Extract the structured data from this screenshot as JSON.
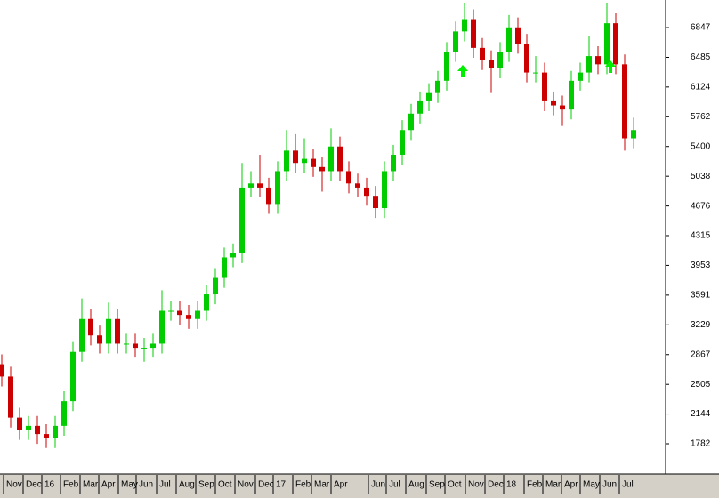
{
  "chart_data": {
    "type": "candlestick",
    "x": [
      0,
      2,
      4,
      6,
      8,
      10,
      12,
      14,
      16,
      18,
      20,
      22,
      24,
      26,
      28,
      30,
      32,
      34,
      36,
      38,
      40,
      42,
      44,
      46,
      48,
      50,
      52,
      54,
      56,
      58,
      60,
      62,
      64,
      66,
      68,
      70,
      72,
      74,
      76,
      78,
      80,
      82,
      84,
      86,
      88,
      90,
      92,
      94,
      96,
      98,
      100,
      102,
      104,
      106,
      108,
      110,
      112,
      114,
      116,
      118,
      120,
      122,
      124,
      126,
      128,
      130,
      132,
      134,
      136,
      138,
      140,
      142
    ],
    "open": [
      2750,
      2600,
      2100,
      1950,
      2000,
      1900,
      1850,
      2000,
      2300,
      2900,
      3300,
      3100,
      3000,
      3300,
      3000,
      3000,
      2950,
      2950,
      3000,
      3400,
      3400,
      3350,
      3300,
      3400,
      3600,
      3800,
      4050,
      4100,
      4900,
      4950,
      4900,
      4700,
      5100,
      5350,
      5200,
      5250,
      5150,
      5100,
      5400,
      5100,
      4950,
      4900,
      4800,
      4650,
      5100,
      5300,
      5600,
      5800,
      5950,
      6050,
      6200,
      6550,
      6800,
      6950,
      6600,
      6450,
      6350,
      6550,
      6850,
      6650,
      6300,
      6300,
      5950,
      5900,
      5850,
      6200,
      6300,
      6500,
      6400,
      6900,
      6400,
      5500
    ],
    "high": [
      2870,
      2720,
      2220,
      2120,
      2120,
      2020,
      2120,
      2420,
      3020,
      3550,
      3420,
      3220,
      3500,
      3420,
      3120,
      3120,
      3070,
      3120,
      3650,
      3520,
      3520,
      3470,
      3520,
      3720,
      3920,
      4170,
      4220,
      5200,
      5100,
      5300,
      5020,
      5220,
      5600,
      5550,
      5500,
      5370,
      5270,
      5620,
      5520,
      5220,
      5070,
      5020,
      4920,
      5220,
      5420,
      5720,
      5920,
      6070,
      6170,
      6320,
      6670,
      6920,
      7150,
      7070,
      6720,
      6570,
      6670,
      7000,
      6970,
      6770,
      6500,
      6420,
      6070,
      6020,
      6320,
      6420,
      6750,
      6620,
      7150,
      7020,
      6520,
      5750
    ],
    "low": [
      2480,
      1980,
      1830,
      1830,
      1780,
      1730,
      1730,
      1880,
      2180,
      2780,
      2980,
      2880,
      2880,
      2880,
      2880,
      2830,
      2780,
      2830,
      2880,
      3280,
      3230,
      3180,
      3180,
      3280,
      3480,
      3680,
      3930,
      3980,
      4780,
      4780,
      4580,
      4580,
      4980,
      5080,
      5080,
      5030,
      4850,
      4980,
      4980,
      4830,
      4780,
      4680,
      4530,
      4530,
      4980,
      5180,
      5480,
      5680,
      5830,
      5930,
      6080,
      6430,
      6680,
      6480,
      6330,
      6050,
      6230,
      6430,
      6530,
      6180,
      6180,
      5830,
      5780,
      5650,
      5730,
      6080,
      6180,
      6280,
      6280,
      6280,
      5350,
      5380
    ],
    "close": [
      2600,
      2100,
      1950,
      2000,
      1900,
      1850,
      2000,
      2300,
      2900,
      3300,
      3100,
      3000,
      3300,
      3000,
      3000,
      2950,
      2950,
      3000,
      3400,
      3400,
      3350,
      3300,
      3400,
      3600,
      3800,
      4050,
      4100,
      4900,
      4950,
      4900,
      4700,
      5100,
      5350,
      5200,
      5250,
      5150,
      5100,
      5400,
      5100,
      4950,
      4900,
      4800,
      4650,
      5100,
      5300,
      5600,
      5800,
      5950,
      6050,
      6200,
      6550,
      6800,
      6950,
      6600,
      6450,
      6350,
      6550,
      6850,
      6650,
      6300,
      6300,
      5950,
      5900,
      5850,
      6200,
      6300,
      6500,
      6400,
      6900,
      6400,
      5500,
      5600
    ],
    "up_color": "#00cc00",
    "down_color": "#cc0000",
    "xlim": [
      0,
      149.2
    ],
    "xticks": [
      {
        "value": 0.4,
        "label": "Nov"
      },
      {
        "value": 4.8,
        "label": "Dec"
      },
      {
        "value": 9,
        "label": "16"
      },
      {
        "value": 13.2,
        "label": "Feb"
      },
      {
        "value": 17.6,
        "label": "Mar"
      },
      {
        "value": 21.8,
        "label": "Apr"
      },
      {
        "value": 26.2,
        "label": "May"
      },
      {
        "value": 30.2,
        "label": "Jun"
      },
      {
        "value": 34.8,
        "label": "Jul"
      },
      {
        "value": 39.2,
        "label": "Aug"
      },
      {
        "value": 43.6,
        "label": "Sep"
      },
      {
        "value": 48,
        "label": "Oct"
      },
      {
        "value": 52.4,
        "label": "Nov"
      },
      {
        "value": 57,
        "label": "Dec"
      },
      {
        "value": 61,
        "label": "17"
      },
      {
        "value": 65.4,
        "label": "Feb"
      },
      {
        "value": 69.6,
        "label": "Mar"
      },
      {
        "value": 74,
        "label": "Apr"
      },
      {
        "value": 82.4,
        "label": "Jun"
      },
      {
        "value": 86.4,
        "label": "Jul"
      },
      {
        "value": 90.8,
        "label": "Aug"
      },
      {
        "value": 95.4,
        "label": "Sep"
      },
      {
        "value": 99.6,
        "label": "Oct"
      },
      {
        "value": 104.2,
        "label": "Nov"
      },
      {
        "value": 108.6,
        "label": "Dec"
      },
      {
        "value": 112.8,
        "label": "18"
      },
      {
        "value": 117.4,
        "label": "Feb"
      },
      {
        "value": 121.6,
        "label": "Mar"
      },
      {
        "value": 125.8,
        "label": "Apr"
      },
      {
        "value": 130,
        "label": "May"
      },
      {
        "value": 134.4,
        "label": "Jun"
      },
      {
        "value": 138.8,
        "label": "Jul"
      }
    ],
    "ylim": [
      1414,
      7183
    ],
    "yticks": [
      1782,
      2144,
      2505,
      2867,
      3229,
      3591,
      3953,
      4315,
      4676,
      5038,
      5400,
      5762,
      6124,
      6485,
      6847
    ]
  }
}
